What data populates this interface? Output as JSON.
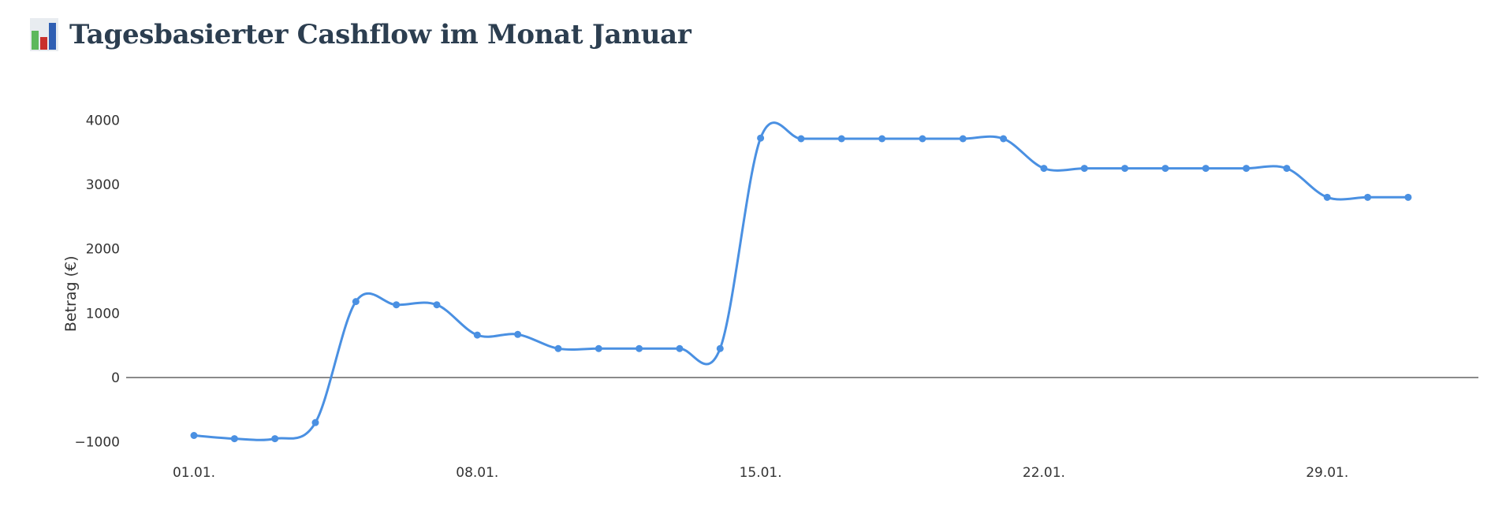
{
  "header": {
    "title": "Tagesbasierter Cashflow im Monat Januar",
    "icon": "bar-chart-icon"
  },
  "chart_data": {
    "type": "line",
    "title": "Tagesbasierter Cashflow im Monat Januar",
    "xlabel": "",
    "ylabel": "Betrag (€)",
    "x": [
      "01.01.",
      "02.01.",
      "03.01.",
      "04.01.",
      "05.01.",
      "06.01.",
      "07.01.",
      "08.01.",
      "09.01.",
      "10.01.",
      "11.01.",
      "12.01.",
      "13.01.",
      "14.01.",
      "15.01.",
      "16.01.",
      "17.01.",
      "18.01.",
      "19.01.",
      "20.01.",
      "21.01.",
      "22.01.",
      "23.01.",
      "24.01.",
      "25.01.",
      "26.01.",
      "27.01.",
      "28.01.",
      "29.01.",
      "30.01.",
      "31.01."
    ],
    "x_ticks": [
      "01.01.",
      "08.01.",
      "15.01.",
      "22.01.",
      "29.01."
    ],
    "y_ticks": [
      "−1000",
      "0",
      "1000",
      "2000",
      "3000",
      "4000"
    ],
    "y_tick_values": [
      -1000,
      0,
      1000,
      2000,
      3000,
      4000
    ],
    "ylim": [
      -1150,
      4350
    ],
    "series": [
      {
        "values": [
          -900,
          -950,
          -950,
          -700,
          1180,
          1130,
          1130,
          660,
          670,
          450,
          450,
          450,
          450,
          450,
          3720,
          3710,
          3710,
          3710,
          3710,
          3710,
          3710,
          3250,
          3250,
          3250,
          3250,
          3250,
          3250,
          3250,
          2800,
          2800,
          2800
        ],
        "color": "#4a90e2"
      }
    ],
    "line_shape": "spline",
    "markers": true,
    "zero_line": true,
    "grid": false,
    "legend": "none"
  }
}
